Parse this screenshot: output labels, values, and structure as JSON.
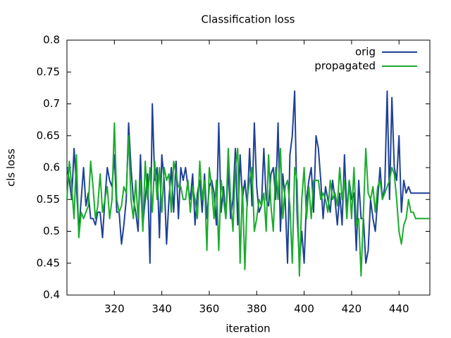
{
  "chart_data": {
    "type": "line",
    "title": "Classification loss",
    "xlabel": "iteration",
    "ylabel": "cls loss",
    "x": [
      300,
      301,
      302,
      303,
      304,
      305,
      306,
      307,
      308,
      309,
      310,
      311,
      312,
      313,
      314,
      315,
      316,
      317,
      318,
      319,
      320,
      321,
      322,
      323,
      324,
      325,
      326,
      327,
      328,
      329,
      330,
      331,
      332,
      333,
      334,
      335,
      336,
      337,
      338,
      339,
      340,
      341,
      342,
      343,
      344,
      345,
      346,
      347,
      348,
      349,
      350,
      351,
      352,
      353,
      354,
      355,
      356,
      357,
      358,
      359,
      360,
      361,
      362,
      363,
      364,
      365,
      366,
      367,
      368,
      369,
      370,
      371,
      372,
      373,
      374,
      375,
      376,
      377,
      378,
      379,
      380,
      381,
      382,
      383,
      384,
      385,
      386,
      387,
      388,
      389,
      390,
      391,
      392,
      393,
      394,
      395,
      396,
      397,
      398,
      399,
      400,
      401,
      402,
      403,
      404,
      405,
      406,
      407,
      408,
      409,
      410,
      411,
      412,
      413,
      414,
      415,
      416,
      417,
      418,
      419,
      420,
      421,
      422,
      423,
      424,
      425,
      426,
      427,
      428,
      429,
      430,
      431,
      432,
      433,
      434,
      435,
      436,
      437,
      438,
      439,
      440,
      441,
      442,
      443,
      444,
      445,
      446,
      447,
      448,
      449,
      450,
      451,
      452,
      453
    ],
    "series": [
      {
        "name": "orig",
        "color": "#1f4196",
        "values": [
          0.6,
          0.58,
          0.55,
          0.63,
          0.57,
          0.5,
          0.55,
          0.6,
          0.54,
          0.56,
          0.52,
          0.52,
          0.51,
          0.53,
          0.53,
          0.49,
          0.55,
          0.6,
          0.58,
          0.57,
          0.62,
          0.53,
          0.53,
          0.48,
          0.51,
          0.55,
          0.67,
          0.6,
          0.55,
          0.53,
          0.5,
          0.62,
          0.51,
          0.55,
          0.59,
          0.45,
          0.7,
          0.58,
          0.6,
          0.49,
          0.62,
          0.58,
          0.48,
          0.55,
          0.6,
          0.53,
          0.61,
          0.52,
          0.6,
          0.58,
          0.6,
          0.57,
          0.55,
          0.59,
          0.51,
          0.56,
          0.58,
          0.53,
          0.59,
          0.52,
          0.57,
          0.58,
          0.56,
          0.51,
          0.67,
          0.53,
          0.57,
          0.52,
          0.6,
          0.52,
          0.55,
          0.63,
          0.51,
          0.62,
          0.55,
          0.58,
          0.54,
          0.63,
          0.54,
          0.67,
          0.57,
          0.53,
          0.54,
          0.63,
          0.55,
          0.54,
          0.59,
          0.6,
          0.55,
          0.67,
          0.5,
          0.59,
          0.55,
          0.45,
          0.62,
          0.65,
          0.72,
          0.53,
          0.45,
          0.5,
          0.45,
          0.55,
          0.58,
          0.6,
          0.53,
          0.65,
          0.63,
          0.58,
          0.52,
          0.57,
          0.55,
          0.53,
          0.58,
          0.55,
          0.51,
          0.56,
          0.51,
          0.62,
          0.53,
          0.58,
          0.55,
          0.56,
          0.47,
          0.58,
          0.52,
          0.52,
          0.45,
          0.47,
          0.55,
          0.52,
          0.5,
          0.55,
          0.6,
          0.55,
          0.57,
          0.72,
          0.55,
          0.71,
          0.6,
          0.58,
          0.65,
          0.53,
          0.58,
          0.56,
          0.57,
          0.56,
          0.56,
          0.56,
          0.56,
          0.56,
          0.56,
          0.56,
          0.56,
          0.56
        ]
      },
      {
        "name": "propagated",
        "color": "#1aab2c",
        "values": [
          0.55,
          0.61,
          0.57,
          0.52,
          0.62,
          0.49,
          0.53,
          0.52,
          0.53,
          0.54,
          0.61,
          0.57,
          0.52,
          0.54,
          0.59,
          0.53,
          0.55,
          0.57,
          0.52,
          0.55,
          0.67,
          0.55,
          0.53,
          0.54,
          0.57,
          0.56,
          0.65,
          0.55,
          0.52,
          0.58,
          0.52,
          0.58,
          0.5,
          0.61,
          0.55,
          0.6,
          0.53,
          0.61,
          0.55,
          0.6,
          0.53,
          0.6,
          0.58,
          0.59,
          0.53,
          0.61,
          0.59,
          0.57,
          0.57,
          0.55,
          0.55,
          0.58,
          0.53,
          0.57,
          0.55,
          0.52,
          0.61,
          0.55,
          0.58,
          0.47,
          0.6,
          0.57,
          0.52,
          0.58,
          0.47,
          0.58,
          0.55,
          0.52,
          0.63,
          0.55,
          0.5,
          0.6,
          0.63,
          0.45,
          0.57,
          0.44,
          0.55,
          0.58,
          0.6,
          0.5,
          0.52,
          0.55,
          0.54,
          0.56,
          0.5,
          0.62,
          0.54,
          0.5,
          0.6,
          0.55,
          0.63,
          0.52,
          0.57,
          0.58,
          0.54,
          0.45,
          0.6,
          0.58,
          0.43,
          0.55,
          0.6,
          0.52,
          0.57,
          0.52,
          0.58,
          0.58,
          0.58,
          0.55,
          0.56,
          0.55,
          0.53,
          0.58,
          0.55,
          0.56,
          0.54,
          0.6,
          0.55,
          0.58,
          0.52,
          0.58,
          0.52,
          0.6,
          0.51,
          0.52,
          0.43,
          0.53,
          0.63,
          0.56,
          0.55,
          0.57,
          0.53,
          0.57,
          0.58,
          0.55,
          0.56,
          0.57,
          0.58,
          0.6,
          0.59,
          0.55,
          0.5,
          0.48,
          0.51,
          0.52,
          0.55,
          0.53,
          0.53,
          0.52,
          0.52,
          0.52,
          0.52,
          0.52,
          0.52,
          0.52
        ]
      }
    ],
    "xlim": [
      300,
      453
    ],
    "xticks": [
      320,
      340,
      360,
      380,
      400,
      420,
      440
    ],
    "ylim": [
      0.4,
      0.8
    ],
    "yticks": [
      0.4,
      0.45,
      0.5,
      0.55,
      0.6,
      0.65,
      0.7,
      0.75,
      0.8
    ],
    "grid": false,
    "legend": "top-right"
  }
}
